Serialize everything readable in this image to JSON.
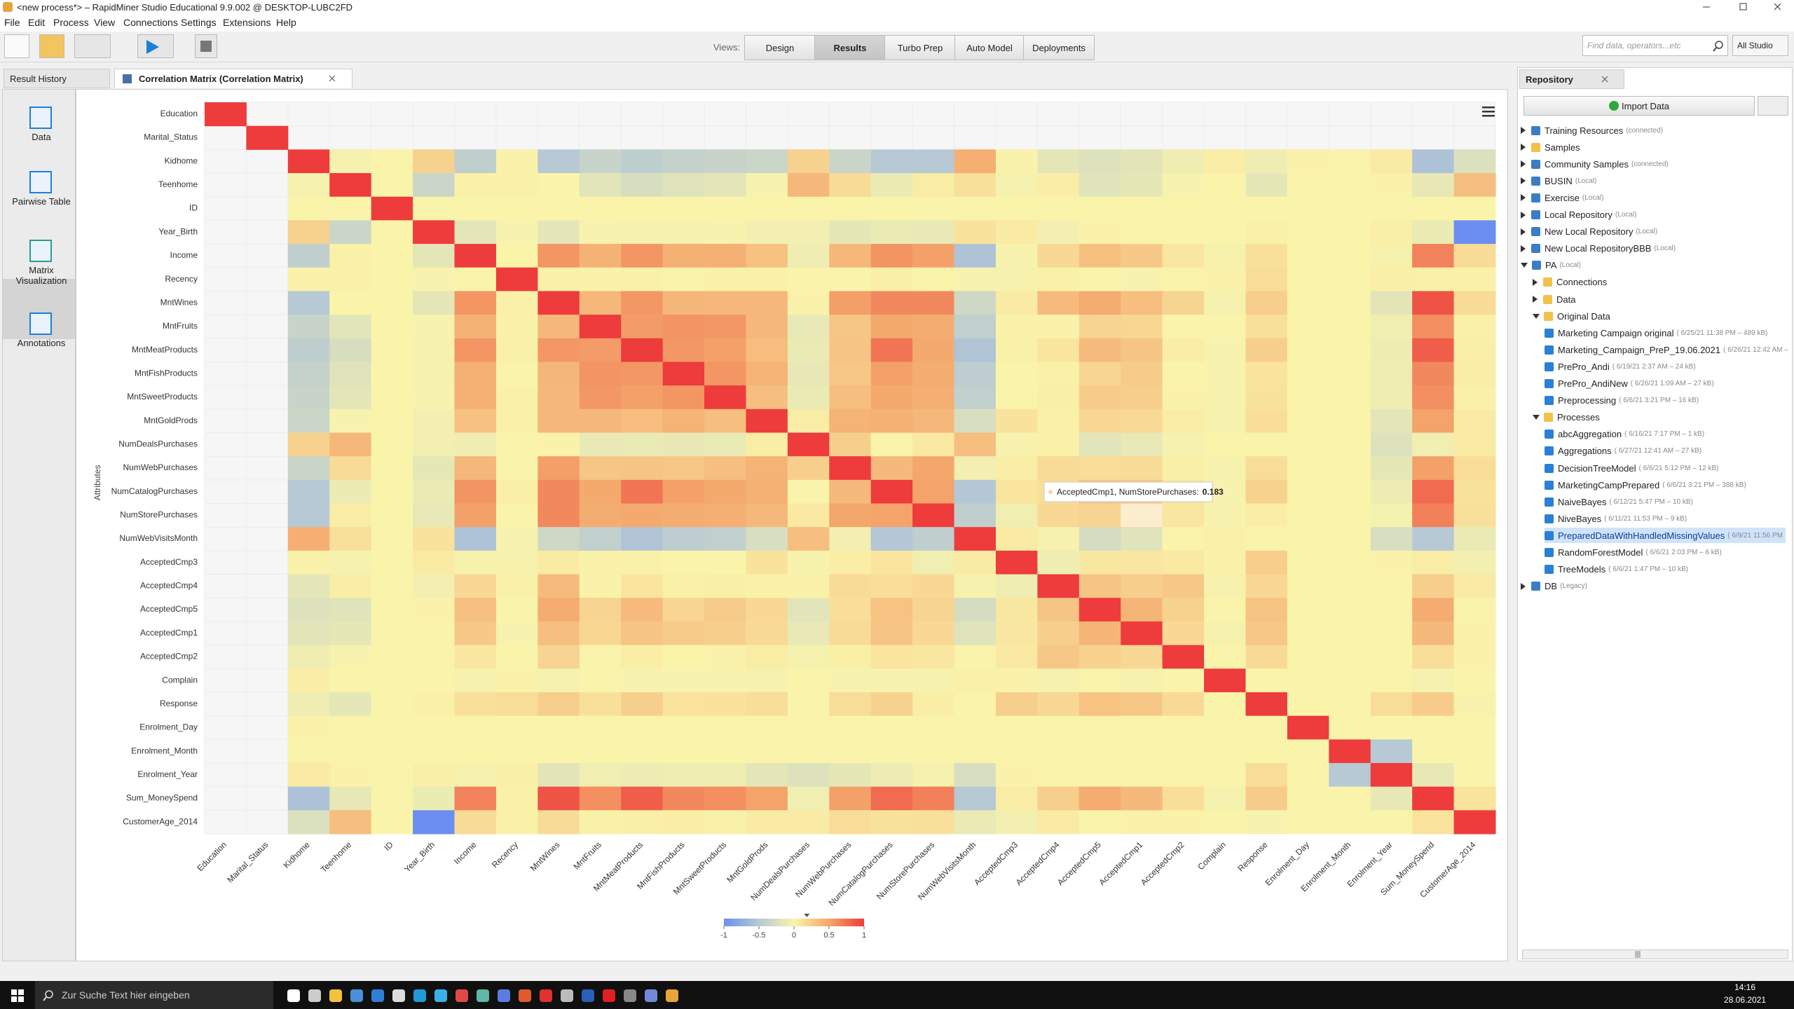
{
  "window": {
    "title": "<new process*> – RapidMiner Studio Educational 9.9.002 @ DESKTOP-LUBC2FD"
  },
  "menu": [
    "File",
    "Edit",
    "Process",
    "View",
    "Connections",
    "Settings",
    "Extensions",
    "Help"
  ],
  "toolbar": {
    "views_label": "Views:",
    "views": [
      "Design",
      "Results",
      "Turbo Prep",
      "Auto Model",
      "Deployments"
    ],
    "active_view": "Results",
    "search_placeholder": "Find data, operators...etc",
    "scope": "All Studio"
  },
  "tabs": [
    "Result History",
    "Correlation Matrix (Correlation Matrix)"
  ],
  "sidebar": {
    "items": [
      "Data",
      "Pairwise Table",
      "Matrix Visualization",
      "Annotations"
    ],
    "active": "Matrix Visualization"
  },
  "chart_data": {
    "type": "heatmap",
    "y_label": "Attributes",
    "categories": [
      "Education",
      "Marital_Status",
      "Kidhome",
      "Teenhome",
      "ID",
      "Year_Birth",
      "Income",
      "Recency",
      "MntWines",
      "MntFruits",
      "MntMeatProducts",
      "MntFishProducts",
      "MntSweetProducts",
      "MntGoldProds",
      "NumDealsPurchases",
      "NumWebPurchases",
      "NumCatalogPurchases",
      "NumStorePurchases",
      "NumWebVisitsMonth",
      "AcceptedCmp3",
      "AcceptedCmp4",
      "AcceptedCmp5",
      "AcceptedCmp1",
      "AcceptedCmp2",
      "Complain",
      "Response",
      "Enrolment_Day",
      "Enrolment_Month",
      "Enrolment_Year",
      "Sum_MoneySpend",
      "CustomerAge_2014"
    ],
    "matrix": [
      [
        1,
        null,
        null,
        null,
        null,
        null,
        null,
        null,
        null,
        null,
        null,
        null,
        null,
        null,
        null,
        null,
        null,
        null,
        null,
        null,
        null,
        null,
        null,
        null,
        null,
        null,
        null,
        null,
        null,
        null,
        null
      ],
      [
        null,
        1,
        null,
        null,
        null,
        null,
        null,
        null,
        null,
        null,
        null,
        null,
        null,
        null,
        null,
        null,
        null,
        null,
        null,
        null,
        null,
        null,
        null,
        null,
        null,
        null,
        null,
        null,
        null,
        null,
        null
      ],
      [
        null,
        null,
        1,
        -0.04,
        0,
        0.23,
        -0.43,
        0.01,
        -0.5,
        -0.37,
        -0.44,
        -0.39,
        -0.37,
        -0.35,
        0.22,
        -0.36,
        -0.5,
        -0.5,
        0.45,
        0.01,
        -0.16,
        -0.21,
        -0.17,
        -0.08,
        0.04,
        -0.08,
        0.01,
        -0.01,
        0.06,
        -0.56,
        -0.23
      ],
      [
        null,
        null,
        -0.04,
        1,
        0,
        -0.35,
        0.02,
        0.02,
        0,
        -0.18,
        -0.26,
        -0.2,
        -0.16,
        -0.02,
        0.39,
        0.16,
        -0.11,
        0.05,
        0.13,
        -0.04,
        0.04,
        -0.19,
        -0.15,
        -0.02,
        0,
        -0.15,
        0,
        0,
        0.01,
        -0.14,
        0.35
      ],
      [
        null,
        null,
        0,
        0,
        1,
        0,
        0,
        0,
        0,
        0,
        0,
        0,
        0,
        0,
        0,
        0,
        0,
        0,
        0,
        0,
        0,
        0,
        0,
        0,
        0,
        0,
        0,
        0,
        0,
        0,
        0
      ],
      [
        null,
        null,
        0.23,
        -0.35,
        0,
        1,
        -0.16,
        -0.02,
        -0.16,
        -0.02,
        -0.03,
        -0.04,
        -0.02,
        -0.06,
        -0.06,
        -0.15,
        -0.12,
        -0.13,
        0.12,
        0.06,
        -0.06,
        0.01,
        -0.01,
        -0.01,
        0,
        0.02,
        0,
        0,
        0.03,
        -0.11,
        -1
      ],
      [
        null,
        null,
        -0.43,
        0.02,
        0,
        -0.16,
        1,
        0,
        0.58,
        0.43,
        0.58,
        0.44,
        0.44,
        0.33,
        -0.08,
        0.39,
        0.59,
        0.53,
        -0.55,
        -0.02,
        0.18,
        0.34,
        0.28,
        0.09,
        -0.03,
        0.13,
        0,
        0,
        -0.03,
        0.67,
        0.16
      ],
      [
        null,
        null,
        0.01,
        0.02,
        0,
        -0.02,
        0,
        1,
        0.02,
        0.01,
        0.02,
        0,
        0.02,
        0.02,
        0,
        -0.01,
        0.03,
        0,
        -0.02,
        -0.03,
        0.02,
        0,
        -0.02,
        0,
        0.01,
        0.15,
        0,
        0,
        0.03,
        0.02,
        0.02
      ],
      [
        null,
        null,
        -0.5,
        0,
        0,
        -0.16,
        0.58,
        0.02,
        1,
        0.39,
        0.57,
        0.4,
        0.39,
        0.39,
        0.01,
        0.54,
        0.64,
        0.64,
        -0.32,
        0.06,
        0.37,
        0.47,
        0.35,
        0.21,
        -0.04,
        0.25,
        0,
        0,
        -0.17,
        0.89,
        0.16
      ],
      [
        null,
        null,
        -0.37,
        -0.18,
        0,
        -0.02,
        0.43,
        0.01,
        0.39,
        1,
        0.55,
        0.59,
        0.57,
        0.39,
        -0.13,
        0.3,
        0.49,
        0.46,
        -0.42,
        0.01,
        0.01,
        0.21,
        0.19,
        -0.01,
        -0.01,
        0.13,
        0,
        0,
        -0.07,
        0.61,
        0.02
      ],
      [
        null,
        null,
        -0.44,
        -0.26,
        0,
        -0.03,
        0.58,
        0.02,
        0.57,
        0.55,
        1,
        0.57,
        0.53,
        0.36,
        -0.12,
        0.31,
        0.73,
        0.48,
        -0.54,
        0.02,
        0.1,
        0.37,
        0.31,
        0.04,
        -0.02,
        0.24,
        0,
        0,
        -0.09,
        0.84,
        0.03
      ],
      [
        null,
        null,
        -0.39,
        -0.2,
        0,
        -0.04,
        0.44,
        0,
        0.4,
        0.59,
        0.57,
        1,
        0.58,
        0.42,
        -0.14,
        0.29,
        0.53,
        0.46,
        -0.45,
        0,
        0.02,
        0.2,
        0.26,
        0,
        -0.02,
        0.11,
        0,
        0,
        -0.08,
        0.64,
        0.04
      ],
      [
        null,
        null,
        -0.37,
        -0.16,
        0,
        -0.02,
        0.44,
        0.02,
        0.39,
        0.57,
        0.53,
        0.58,
        1,
        0.35,
        -0.12,
        0.35,
        0.49,
        0.45,
        -0.42,
        0,
        0.03,
        0.26,
        0.24,
        0.01,
        -0.02,
        0.12,
        0,
        0,
        -0.08,
        0.61,
        0.02
      ],
      [
        null,
        null,
        -0.35,
        -0.02,
        0,
        -0.06,
        0.33,
        0.02,
        0.39,
        0.39,
        0.36,
        0.42,
        0.35,
        1,
        0.05,
        0.42,
        0.44,
        0.39,
        -0.25,
        0.12,
        0.02,
        0.18,
        0.17,
        0.05,
        -0.03,
        0.14,
        0,
        0,
        -0.16,
        0.52,
        0.06
      ],
      [
        null,
        null,
        0.22,
        0.39,
        0,
        -0.06,
        -0.08,
        0,
        0.01,
        -0.13,
        -0.12,
        -0.14,
        -0.12,
        0.05,
        1,
        0.24,
        -0.01,
        0.07,
        0.35,
        -0.02,
        0.02,
        -0.18,
        -0.13,
        -0.04,
        0,
        0,
        0,
        0,
        -0.21,
        -0.07,
        0.06
      ],
      [
        null,
        null,
        -0.36,
        0.16,
        0,
        -0.15,
        0.39,
        -0.01,
        0.54,
        0.3,
        0.31,
        0.29,
        0.35,
        0.42,
        0.24,
        1,
        0.38,
        0.5,
        -0.06,
        0.04,
        0.16,
        0.14,
        0.16,
        0.03,
        -0.02,
        0.15,
        0,
        0,
        -0.15,
        0.53,
        0.15
      ],
      [
        null,
        null,
        -0.5,
        -0.11,
        0,
        -0.12,
        0.59,
        0.03,
        0.64,
        0.49,
        0.73,
        0.53,
        0.49,
        0.44,
        -0.01,
        0.38,
        1,
        0.52,
        -0.52,
        0.1,
        0.14,
        0.32,
        0.31,
        0.1,
        -0.02,
        0.22,
        0,
        0,
        -0.09,
        0.78,
        0.12
      ],
      [
        null,
        null,
        -0.5,
        0.05,
        0,
        -0.13,
        0.53,
        0,
        0.64,
        0.46,
        0.48,
        0.46,
        0.45,
        0.39,
        0.07,
        0.5,
        0.52,
        1,
        -0.43,
        -0.07,
        0.18,
        0.21,
        0.183,
        0.09,
        -0.02,
        0.04,
        0,
        0,
        -0.04,
        0.68,
        0.13
      ],
      [
        null,
        null,
        0.45,
        0.13,
        0,
        0.12,
        -0.55,
        -0.02,
        -0.32,
        -0.42,
        -0.54,
        -0.45,
        -0.42,
        -0.25,
        0.35,
        -0.06,
        -0.52,
        -0.43,
        1,
        0.06,
        -0.03,
        -0.28,
        -0.19,
        -0.01,
        0.02,
        0,
        0,
        0,
        -0.25,
        -0.5,
        -0.12
      ],
      [
        null,
        null,
        0.01,
        -0.04,
        0,
        0.06,
        -0.02,
        -0.03,
        0.06,
        0.01,
        0.02,
        0,
        0,
        0.12,
        -0.02,
        0.04,
        0.1,
        -0.07,
        0.06,
        1,
        -0.08,
        0.08,
        0.09,
        0.07,
        0.01,
        0.25,
        0,
        0,
        0.01,
        0.05,
        -0.06
      ],
      [
        null,
        null,
        -0.16,
        0.04,
        0,
        -0.06,
        0.18,
        0.02,
        0.37,
        0.01,
        0.1,
        0.02,
        0.03,
        0.02,
        0.02,
        0.16,
        0.14,
        0.18,
        -0.03,
        -0.08,
        1,
        0.31,
        0.24,
        0.29,
        -0.03,
        0.18,
        0,
        0,
        -0.01,
        0.25,
        0.06
      ],
      [
        null,
        null,
        -0.21,
        -0.19,
        0,
        0.01,
        0.34,
        0,
        0.47,
        0.21,
        0.37,
        0.2,
        0.26,
        0.18,
        -0.18,
        0.14,
        0.32,
        0.21,
        -0.28,
        0.08,
        0.31,
        1,
        0.41,
        0.22,
        -0.01,
        0.32,
        0,
        0,
        -0.01,
        0.47,
        -0.01
      ],
      [
        null,
        null,
        -0.17,
        -0.15,
        0,
        -0.01,
        0.28,
        -0.02,
        0.35,
        0.19,
        0.31,
        0.26,
        0.24,
        0.17,
        -0.13,
        0.16,
        0.31,
        0.183,
        -0.19,
        0.09,
        0.24,
        0.41,
        1,
        0.18,
        -0.03,
        0.29,
        0,
        0,
        -0.01,
        0.38,
        0.01
      ],
      [
        null,
        null,
        -0.08,
        -0.02,
        0,
        -0.01,
        0.09,
        0,
        0.21,
        -0.01,
        0.04,
        0,
        0.01,
        0.05,
        -0.04,
        0.03,
        0.1,
        0.09,
        -0.01,
        0.07,
        0.29,
        0.22,
        0.18,
        1,
        -0.01,
        0.17,
        0,
        0,
        0,
        0.14,
        0.01
      ],
      [
        null,
        null,
        0.04,
        0,
        0,
        0,
        -0.03,
        0.01,
        -0.04,
        -0.01,
        -0.02,
        -0.02,
        -0.02,
        -0.03,
        0,
        -0.02,
        -0.02,
        -0.02,
        0.02,
        0.01,
        -0.03,
        -0.01,
        -0.03,
        -0.01,
        1,
        0,
        0,
        0,
        0,
        -0.04,
        0
      ],
      [
        null,
        null,
        -0.08,
        -0.15,
        0,
        0.02,
        0.13,
        0.15,
        0.25,
        0.13,
        0.24,
        0.11,
        0.12,
        0.14,
        0,
        0.15,
        0.22,
        0.04,
        0,
        0.25,
        0.18,
        0.32,
        0.29,
        0.17,
        0,
        1,
        0,
        0,
        0.15,
        0.26,
        -0.02
      ],
      [
        null,
        null,
        0.01,
        0,
        0,
        0,
        0,
        0,
        0,
        0,
        0,
        0,
        0,
        0,
        0,
        0,
        0,
        0,
        0,
        0,
        0,
        0,
        0,
        0,
        0,
        0,
        1,
        0,
        0,
        0,
        0
      ],
      [
        null,
        null,
        -0.01,
        0,
        0,
        0,
        0,
        0,
        0,
        0,
        0,
        0,
        0,
        0,
        0,
        0,
        0,
        0,
        0,
        0,
        0,
        0,
        0,
        0,
        0,
        0,
        0,
        1,
        -0.5,
        0,
        0
      ],
      [
        null,
        null,
        0.06,
        0.01,
        0,
        0.03,
        -0.03,
        0.03,
        -0.17,
        -0.07,
        -0.09,
        -0.08,
        -0.08,
        -0.16,
        -0.21,
        -0.15,
        -0.09,
        -0.04,
        -0.25,
        0.01,
        -0.01,
        -0.01,
        -0.01,
        0,
        0,
        0.15,
        0,
        -0.5,
        1,
        -0.14,
        0
      ],
      [
        null,
        null,
        -0.56,
        -0.14,
        0,
        -0.11,
        0.67,
        0.02,
        0.89,
        0.61,
        0.84,
        0.64,
        0.61,
        0.52,
        -0.07,
        0.53,
        0.78,
        0.68,
        -0.5,
        0.05,
        0.25,
        0.47,
        0.38,
        0.14,
        -0.04,
        0.26,
        0,
        0,
        -0.14,
        1,
        0.11
      ],
      [
        null,
        null,
        -0.23,
        0.35,
        0,
        -1,
        0.16,
        0.02,
        0.16,
        0.02,
        0.03,
        0.04,
        0.02,
        0.06,
        0.06,
        0.15,
        0.12,
        0.13,
        -0.12,
        -0.06,
        0.06,
        -0.01,
        0.01,
        0.01,
        0,
        -0.02,
        0,
        0,
        0,
        0.11,
        1
      ]
    ],
    "clim": [
      -1,
      1
    ],
    "colorbar_ticks": [
      -1,
      -0.5,
      0,
      0.5,
      1
    ],
    "colorscale": [
      "#6b8ff0",
      "#b6c9d4",
      "#faf4ab",
      "#f4a76c",
      "#ee3b3b"
    ],
    "tooltip": {
      "text": "AcceptedCmp1, NumStorePurchases:",
      "row": 17,
      "col": 22
    }
  },
  "repository": {
    "title": "Repository",
    "import": "Import Data",
    "selected": "PreparedDataWithHandledMissingValues",
    "tree": [
      {
        "label": "Training Resources",
        "detail": "(connected)"
      },
      {
        "label": "Samples"
      },
      {
        "label": "Community Samples",
        "detail": "(connected)"
      },
      {
        "label": "BUSIN",
        "detail": "(Local)"
      },
      {
        "label": "Exercise",
        "detail": "(Local)"
      },
      {
        "label": "Local Repository",
        "detail": "(Local)"
      },
      {
        "label": "New Local Repository",
        "detail": "(Local)"
      },
      {
        "label": "New Local RepositoryBBB",
        "detail": "(Local)"
      },
      {
        "label": "PA",
        "detail": "(Local)",
        "children": [
          {
            "label": "Connections"
          },
          {
            "label": "Data"
          },
          {
            "label": "Original Data",
            "children": [
              {
                "label": "Marketing Campaign original",
                "detail": "( 6/25/21 11:38 PM – 489 kB)",
                "leaf": true
              },
              {
                "label": "Marketing_Campaign_PreP_19.06.2021",
                "detail": "( 6/26/21 12:42 AM –",
                "leaf": true
              },
              {
                "label": "PrePro_Andi",
                "detail": "( 6/19/21 2:37 AM – 24 kB)",
                "leaf": true
              },
              {
                "label": "PrePro_AndiNew",
                "detail": "( 6/26/21 1:09 AM – 27 kB)",
                "leaf": true
              },
              {
                "label": "Preprocessing",
                "detail": "( 6/6/21 3:21 PM – 16 kB)",
                "leaf": true
              }
            ]
          },
          {
            "label": "Processes",
            "children": [
              {
                "label": "abcAggregation",
                "detail": "( 6/16/21 7:17 PM – 1 kB)",
                "leaf": true
              },
              {
                "label": "Aggregations",
                "detail": "( 6/27/21 12:41 AM – 27 kB)",
                "leaf": true
              },
              {
                "label": "DecisionTreeModel",
                "detail": "( 6/6/21 5:12 PM – 12 kB)",
                "leaf": true
              },
              {
                "label": "MarketingCampPrepared",
                "detail": "( 6/6/21 3:21 PM – 388 kB)",
                "leaf": true
              },
              {
                "label": "NaiveBayes",
                "detail": "( 6/12/21 5:47 PM – 10 kB)",
                "leaf": true
              },
              {
                "label": "NiveBayes",
                "detail": "( 6/11/21 11:53 PM – 9 kB)",
                "leaf": true
              },
              {
                "label": "PreparedDataWithHandledMissingValues",
                "detail": "( 6/9/21 11:56 PM",
                "leaf": true
              },
              {
                "label": "RandomForestModel",
                "detail": "( 6/6/21 2:03 PM – 6 kB)",
                "leaf": true
              },
              {
                "label": "TreeModels",
                "detail": "( 6/6/21 1:47 PM – 10 kB)",
                "leaf": true
              }
            ]
          }
        ]
      },
      {
        "label": "DB",
        "detail": "(Legacy)"
      }
    ]
  },
  "taskbar": {
    "search": "Zur Suche Text hier eingeben",
    "time": "14:16",
    "date": "28.06.2021"
  }
}
